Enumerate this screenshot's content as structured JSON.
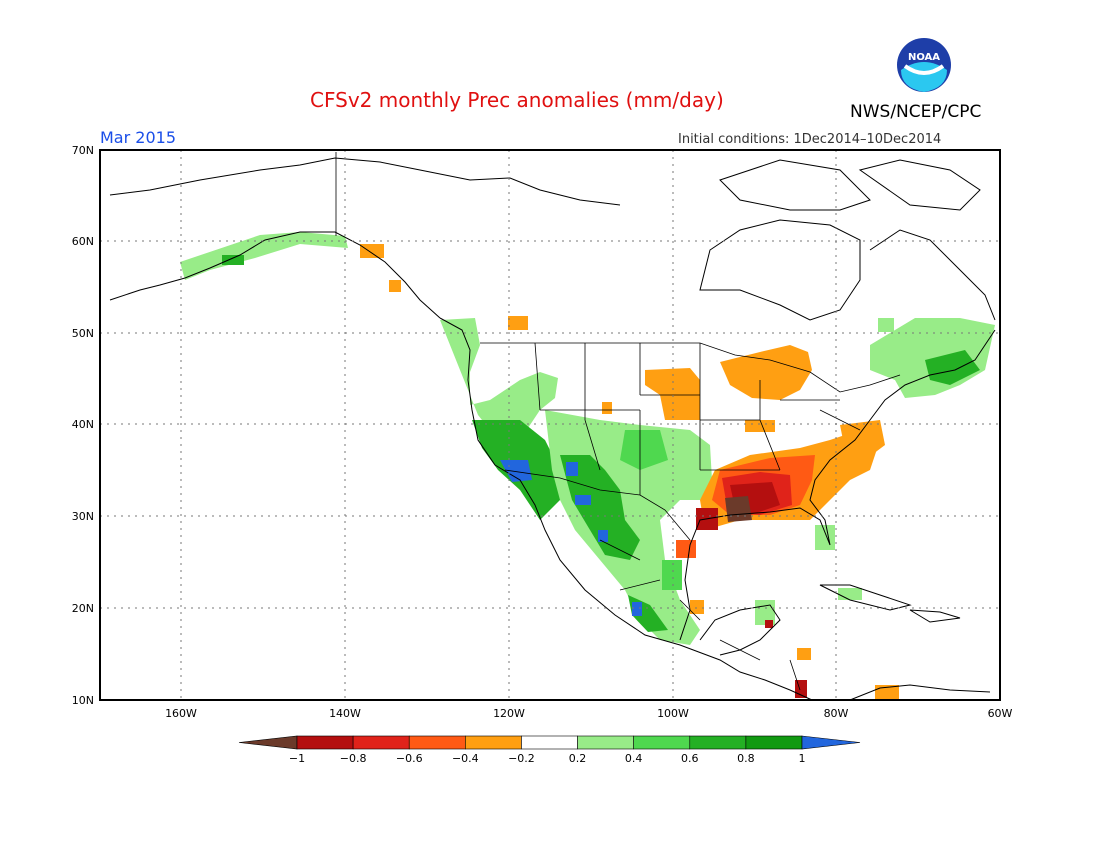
{
  "header": {
    "title": "CFSv2 monthly Prec anomalies (mm/day)",
    "month": "Mar 2015",
    "agency": "NWS/NCEP/CPC",
    "initial_conditions": "Initial conditions: 1Dec2014–10Dec2014"
  },
  "logo": {
    "icon": "noaa-logo-icon",
    "text": "NOAA"
  },
  "map": {
    "lat_labels": [
      "70N",
      "60N",
      "50N",
      "40N",
      "30N",
      "20N",
      "10N"
    ],
    "lon_labels": [
      "160W",
      "140W",
      "120W",
      "100W",
      "80W",
      "60W"
    ]
  },
  "legend": {
    "labels": [
      "−1",
      "−0.8",
      "−0.6",
      "−0.4",
      "−0.2",
      "0.2",
      "0.4",
      "0.6",
      "0.8",
      "1"
    ],
    "colors": [
      "#6b3a2a",
      "#b40f0f",
      "#e0231a",
      "#ff5a14",
      "#ff9f12",
      "#ffffff",
      "#98ec88",
      "#4fd84f",
      "#24b024",
      "#129a12",
      "#2266dd"
    ]
  }
}
